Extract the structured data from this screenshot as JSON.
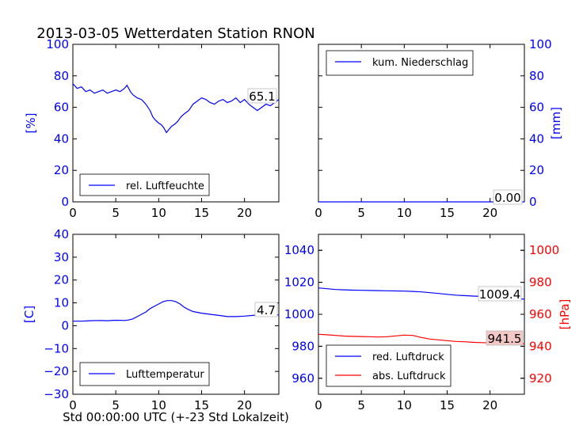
{
  "title": "2013-03-05 Wetterdaten Station RNON",
  "xlabel": "Std 00:00:00 UTC (+-23 Std Lokalzeit)",
  "colors": {
    "blue": "#0000ff",
    "red": "#ff0000",
    "box_red": "#f4c7c7",
    "frame": "#000000"
  },
  "chart_data": [
    {
      "type": "line",
      "id": "humidity",
      "ylabel": "[%]",
      "ylim": [
        0,
        100
      ],
      "yticks": [
        0,
        20,
        40,
        60,
        80,
        100
      ],
      "xlim": [
        0,
        24
      ],
      "xticks": [
        0,
        5,
        10,
        15,
        20
      ],
      "legend": "rel. Luftfeuchte",
      "legend_position": "lower-left",
      "last_value_label": "65.1",
      "series": [
        {
          "name": "rel. Luftfeuchte",
          "color": "#0000ff",
          "x": [
            0,
            0.5,
            1,
            1.5,
            2,
            2.5,
            3,
            3.5,
            4,
            4.5,
            5,
            5.5,
            6,
            6.3,
            6.7,
            7,
            7.5,
            8,
            8.5,
            9,
            9.3,
            9.6,
            10,
            10.3,
            10.6,
            10.9,
            11.2,
            11.5,
            11.8,
            12.2,
            12.6,
            13,
            13.5,
            14,
            14.5,
            15,
            15.5,
            16,
            16.5,
            17,
            17.5,
            18,
            18.5,
            19,
            19.5,
            20,
            20.5,
            21,
            21.5,
            22,
            22.5,
            23,
            23.5,
            24
          ],
          "values": [
            75,
            72,
            73,
            70,
            71,
            69,
            70,
            71,
            69,
            70,
            71,
            70,
            72,
            74,
            70,
            68,
            66,
            65,
            62,
            58,
            54,
            52,
            50,
            49,
            47,
            44,
            46,
            48,
            49,
            51,
            54,
            56,
            58,
            62,
            64,
            66,
            65,
            63,
            62,
            64,
            65,
            63,
            64,
            66,
            63,
            65,
            62,
            60,
            58,
            60,
            62,
            61,
            63,
            65
          ]
        }
      ]
    },
    {
      "type": "line",
      "id": "precipitation",
      "ylabel": "[mm]",
      "ylim": [
        0,
        100
      ],
      "yticks": [
        0,
        20,
        40,
        60,
        80,
        100
      ],
      "xlim": [
        0,
        24
      ],
      "xticks": [
        0,
        5,
        10,
        15,
        20
      ],
      "legend": "kum. Niederschlag",
      "legend_position": "upper-left",
      "last_value_label": "0.00",
      "series": [
        {
          "name": "kum. Niederschlag",
          "color": "#0000ff",
          "x": [
            0,
            24
          ],
          "values": [
            0,
            0
          ]
        }
      ]
    },
    {
      "type": "line",
      "id": "temperature",
      "ylabel": "[C]",
      "ylim": [
        -30,
        40
      ],
      "yticks": [
        -30,
        -20,
        -10,
        0,
        10,
        20,
        30,
        40
      ],
      "xlim": [
        0,
        24
      ],
      "xticks": [
        0,
        5,
        10,
        15,
        20
      ],
      "legend": "Lufttemperatur",
      "legend_position": "lower-left",
      "last_value_label": "4.7",
      "series": [
        {
          "name": "Lufttemperatur",
          "color": "#0000ff",
          "x": [
            0,
            1,
            2,
            3,
            4,
            5,
            6,
            6.5,
            7,
            7.5,
            8,
            8.5,
            9,
            9.5,
            10,
            10.5,
            11,
            11.5,
            12,
            12.5,
            13,
            13.5,
            14,
            15,
            16,
            17,
            18,
            19,
            20,
            21,
            22,
            23,
            24
          ],
          "values": [
            2,
            2,
            2.2,
            2.3,
            2.2,
            2.4,
            2.3,
            2.5,
            3,
            4,
            5,
            6,
            7.5,
            8.5,
            9.5,
            10.5,
            11,
            11,
            10.5,
            9.5,
            8,
            7,
            6.2,
            5.5,
            5,
            4.5,
            4,
            4,
            4.2,
            4.5,
            4.8,
            5,
            4.7
          ]
        }
      ]
    },
    {
      "type": "line",
      "id": "pressure",
      "ylabel_right": "[hPa]",
      "ylim_left": [
        950,
        1050
      ],
      "yticks_left": [
        960,
        980,
        1000,
        1020,
        1040
      ],
      "ylim_right": [
        910,
        1010
      ],
      "yticks_right": [
        920,
        940,
        960,
        980,
        1000
      ],
      "xlim": [
        0,
        24
      ],
      "xticks": [
        0,
        5,
        10,
        15,
        20
      ],
      "legend_position": "lower-left",
      "series": [
        {
          "name": "red. Luftdruck",
          "color": "#0000ff",
          "axis": "left",
          "last_value_label": "1009.4",
          "x": [
            0,
            1,
            2,
            3,
            4,
            5,
            6,
            7,
            8,
            9,
            10,
            11,
            12,
            13,
            14,
            15,
            16,
            17,
            18,
            19,
            20,
            21,
            22,
            23,
            24
          ],
          "values": [
            1016.5,
            1016,
            1015.5,
            1015.3,
            1015.1,
            1015,
            1014.9,
            1014.8,
            1014.7,
            1014.6,
            1014.5,
            1014.3,
            1014,
            1013.5,
            1013,
            1012.5,
            1012,
            1011.7,
            1011.4,
            1011.2,
            1011,
            1010.8,
            1010.5,
            1010,
            1009.4
          ]
        },
        {
          "name": "abs. Luftdruck",
          "color": "#ff0000",
          "axis": "right",
          "last_value_label": "941.5",
          "x": [
            0,
            1,
            2,
            3,
            4,
            5,
            6,
            7,
            8,
            9,
            10,
            11,
            12,
            13,
            14,
            15,
            16,
            17,
            18,
            19,
            20,
            21,
            22,
            23,
            24
          ],
          "values": [
            947.5,
            947.2,
            946.8,
            946.4,
            946.2,
            946.1,
            946,
            945.8,
            946,
            946.5,
            947,
            946.8,
            945.5,
            944.5,
            944,
            943.5,
            943,
            942.8,
            942.5,
            942.3,
            942.2,
            942,
            941.8,
            941.6,
            941.5
          ]
        }
      ]
    }
  ]
}
